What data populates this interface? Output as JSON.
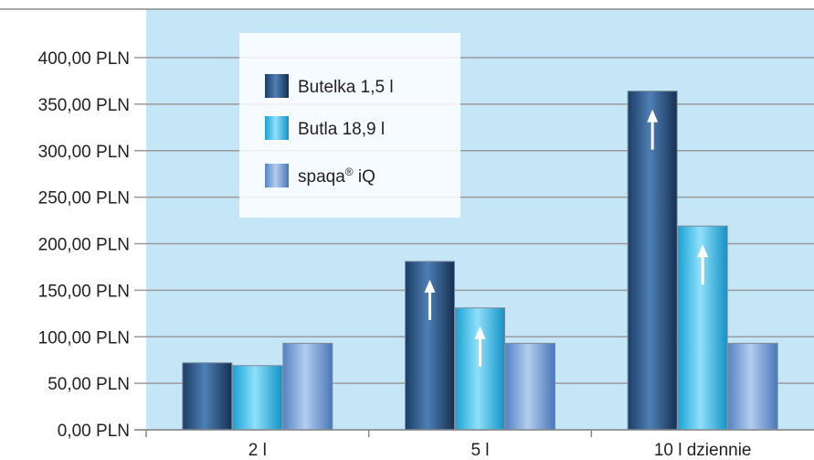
{
  "chart_data": {
    "type": "bar",
    "categories": [
      "2 l",
      "5 l",
      "10 l dziennie"
    ],
    "series": [
      {
        "name": "Butelka 1,5 l",
        "values": [
          72,
          181,
          364
        ],
        "color": "#2d5a8e"
      },
      {
        "name": "Butla 18,9 l",
        "values": [
          69,
          131,
          219
        ],
        "color": "#4cc6ec"
      },
      {
        "name": "spaqa® iQ",
        "values": [
          93,
          93,
          93
        ],
        "color": "#6f9bd6"
      }
    ],
    "ylim": [
      0,
      400
    ],
    "ytick_step": 50,
    "ytick_labels": [
      "0,00 PLN",
      "50,00 PLN",
      "100,00 PLN",
      "150,00 PLN",
      "200,00 PLN",
      "250,00 PLN",
      "300,00 PLN",
      "350,00 PLN",
      "400,00 PLN"
    ],
    "grid": true,
    "legend_position": "top-left",
    "plot_background": "#c5e6f6",
    "annotations": [
      {
        "type": "up-arrow",
        "series": 0,
        "category": 1
      },
      {
        "type": "up-arrow",
        "series": 0,
        "category": 2
      },
      {
        "type": "up-arrow",
        "series": 1,
        "category": 1
      },
      {
        "type": "up-arrow",
        "series": 1,
        "category": 2
      }
    ],
    "title": "",
    "xlabel": "",
    "ylabel": ""
  }
}
